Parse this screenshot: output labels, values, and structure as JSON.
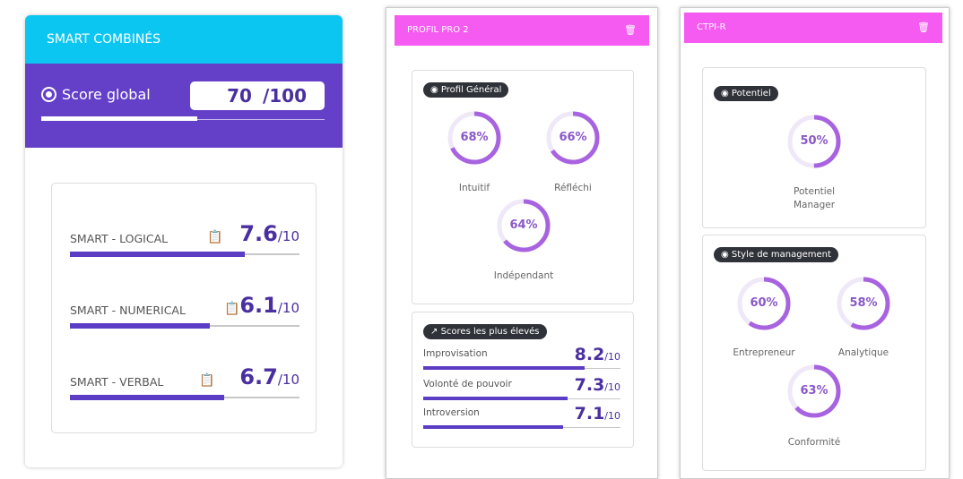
{
  "smart": {
    "title": "SMART COMBINÉS",
    "score_label": "Score global",
    "score": "70",
    "score_max": "/100",
    "score_fraction": 0.7,
    "items": [
      {
        "label": "SMART - LOGICAL",
        "value": "7.6",
        "max": "/10",
        "fraction": 0.76
      },
      {
        "label": "SMART - NUMERICAL",
        "value": "6.1",
        "max": "/10",
        "fraction": 0.61
      },
      {
        "label": "SMART - VERBAL",
        "value": "6.7",
        "max": "/10",
        "fraction": 0.67
      }
    ]
  },
  "profil": {
    "title": "PROFIL PRO 2",
    "general_label": "Profil Général",
    "rings": [
      {
        "value": "68%",
        "pct": 68,
        "label": "Intuitif"
      },
      {
        "value": "66%",
        "pct": 66,
        "label": "Réfléchi"
      },
      {
        "value": "64%",
        "pct": 64,
        "label": "Indépendant"
      }
    ],
    "top_label": "Scores les plus élevés",
    "top": [
      {
        "label": "Improvisation",
        "value": "8.2",
        "max": "/10",
        "fraction": 0.82
      },
      {
        "label": "Volonté de pouvoir",
        "value": "7.3",
        "max": "/10",
        "fraction": 0.73
      },
      {
        "label": "Introversion",
        "value": "7.1",
        "max": "/10",
        "fraction": 0.71
      }
    ]
  },
  "ctpi": {
    "title": "CTPI-R",
    "potentiel_label": "Potentiel",
    "potentiel": {
      "value": "50%",
      "pct": 50,
      "label": "Potentiel Manager"
    },
    "style_label": "Style de management",
    "rings": [
      {
        "value": "60%",
        "pct": 60,
        "label": "Entrepreneur"
      },
      {
        "value": "58%",
        "pct": 58,
        "label": "Analytique"
      },
      {
        "value": "63%",
        "pct": 63,
        "label": "Conformité"
      }
    ]
  },
  "colors": {
    "cyan": "#0cc6f2",
    "purple": "#6440c8",
    "magenta": "#f55bf0",
    "ring": "#a863e0",
    "track": "#efe8f8"
  }
}
